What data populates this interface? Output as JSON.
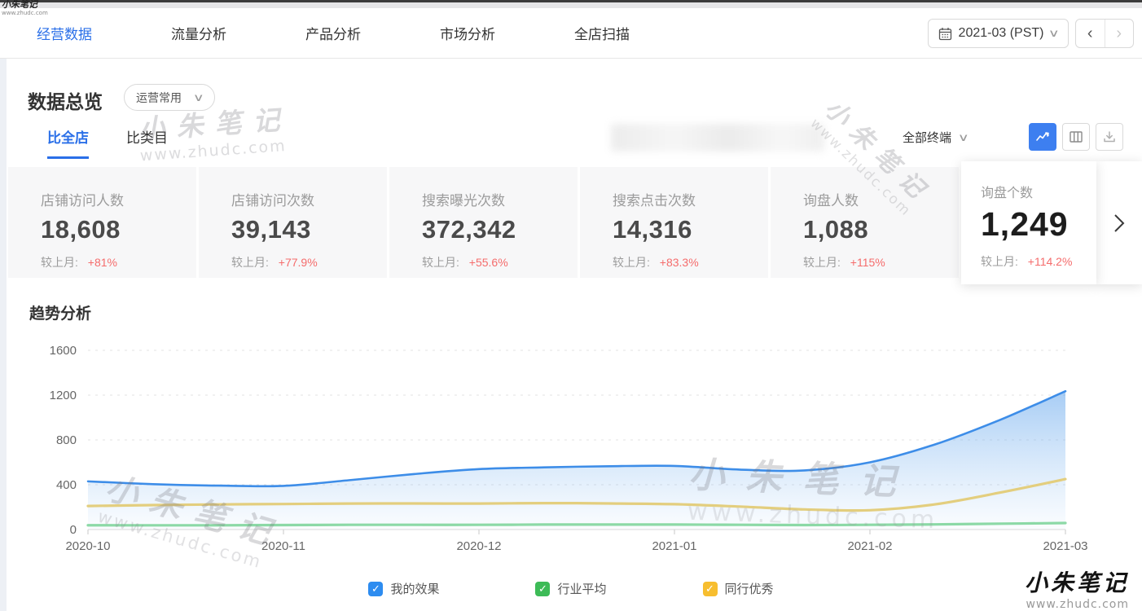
{
  "watermark": {
    "brand": "小朱笔记",
    "site": "www.zhudc.com"
  },
  "nav": {
    "tabs": [
      {
        "label": "经营数据",
        "active": true
      },
      {
        "label": "流量分析",
        "active": false
      },
      {
        "label": "产品分析",
        "active": false
      },
      {
        "label": "市场分析",
        "active": false
      },
      {
        "label": "全店扫描",
        "active": false
      }
    ],
    "date_value": "2021-03 (PST)",
    "prev_arrow": "‹",
    "next_arrow": "›",
    "dropdown_chevron": "∨"
  },
  "overview": {
    "title": "数据总览",
    "preset_dropdown": "运营常用",
    "tab_shop": "比全店",
    "tab_category": "比类目",
    "terminal_dropdown": "全部终端",
    "chevron": "∨"
  },
  "stat_cards": {
    "compare_label": "较上月:",
    "items": [
      {
        "label": "店铺访问人数",
        "value": "18,608",
        "change": "+81%"
      },
      {
        "label": "店铺访问次数",
        "value": "39,143",
        "change": "+77.9%"
      },
      {
        "label": "搜索曝光次数",
        "value": "372,342",
        "change": "+55.6%"
      },
      {
        "label": "搜索点击次数",
        "value": "14,316",
        "change": "+83.3%"
      },
      {
        "label": "询盘人数",
        "value": "1,088",
        "change": "+115%"
      },
      {
        "label": "询盘个数",
        "value": "1,249",
        "change": "+114.2%",
        "active": true
      }
    ]
  },
  "trend": {
    "title": "趋势分析"
  },
  "chart_data": {
    "type": "area",
    "title": "趋势分析",
    "x_range": [
      "2020-10",
      "2021-03"
    ],
    "x_tick_labels": [
      "2020-10",
      "2020-11",
      "2020-12",
      "2021-01",
      "2021-02",
      "2021-03"
    ],
    "ylim": [
      0,
      1600
    ],
    "yticks": [
      0,
      400,
      800,
      1200,
      1600
    ],
    "grid": "horizontal-dashed",
    "legend_position": "bottom",
    "series": [
      {
        "name": "我的效果",
        "color": "#3d8de8",
        "area_fill": true,
        "values": [
          430,
          405,
          392,
          390,
          440,
          495,
          540,
          555,
          565,
          568,
          535,
          528,
          600,
          760,
          980,
          1235
        ]
      },
      {
        "name": "同行优秀",
        "color": "#e3ce7e",
        "area_fill": false,
        "values": [
          210,
          218,
          224,
          228,
          232,
          233,
          232,
          236,
          233,
          226,
          205,
          180,
          172,
          225,
          330,
          450
        ]
      },
      {
        "name": "行业平均",
        "color": "#8cd9a6",
        "area_fill": false,
        "values": [
          38,
          38,
          38,
          40,
          42,
          42,
          42,
          44,
          44,
          44,
          42,
          40,
          42,
          46,
          52,
          58
        ]
      }
    ]
  },
  "legend": {
    "check_glyph": "✓",
    "items": [
      {
        "label": "我的效果",
        "color": "#2d8cf0",
        "checked": true
      },
      {
        "label": "行业平均",
        "color": "#3dbb57",
        "checked": true
      },
      {
        "label": "同行优秀",
        "color": "#f7be2f",
        "checked": true
      }
    ]
  }
}
